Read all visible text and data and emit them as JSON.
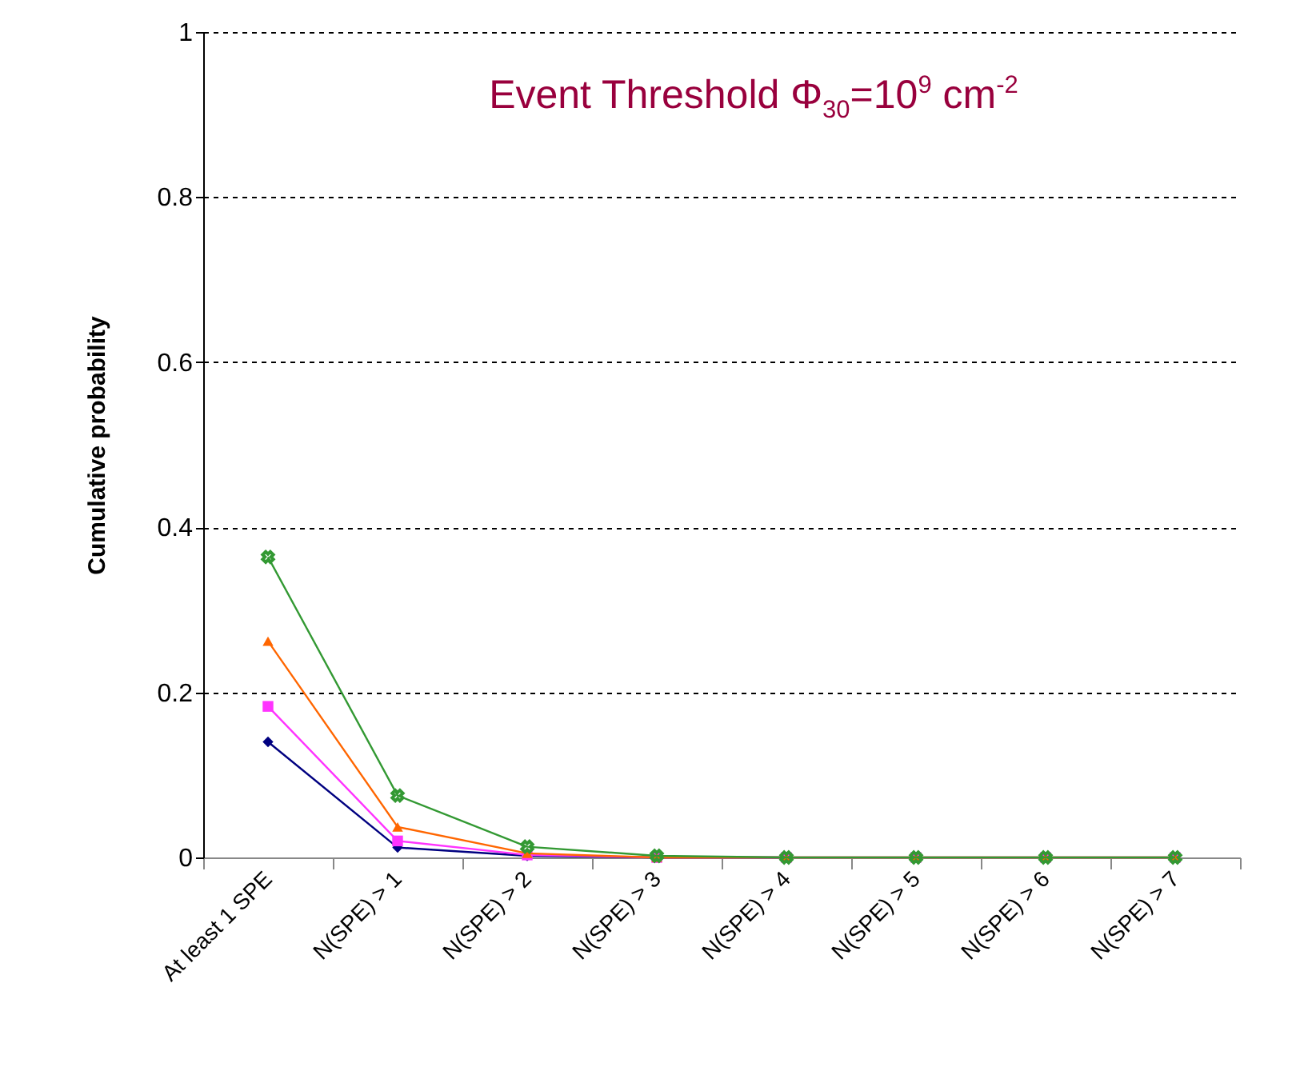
{
  "chart_data": {
    "type": "line",
    "title": "Event Threshold Φ$_{30}$=10$^{9}$ cm$^{-2}$",
    "ylabel": "Cumulative probability",
    "categories": [
      "At least 1 SPE",
      "N(SPE) > 1",
      "N(SPE) > 2",
      "N(SPE) > 3",
      "N(SPE) > 4",
      "N(SPE) > 5",
      "N(SPE) > 6",
      "N(SPE) > 7"
    ],
    "series": [
      {
        "color": "#000080",
        "marker": "diamond",
        "values": [
          0.14,
          0.012,
          0.002,
          0,
          0,
          null,
          null,
          null
        ]
      },
      {
        "color": "#ff33ff",
        "marker": "square",
        "values": [
          0.183,
          0.02,
          0.003,
          0,
          0,
          0,
          0,
          0
        ]
      },
      {
        "color": "#ff6600",
        "marker": "triangle",
        "values": [
          0.262,
          0.037,
          0.005,
          0,
          0,
          0,
          0,
          0
        ]
      },
      {
        "color": "#339933",
        "marker": "cross",
        "values": [
          0.364,
          0.075,
          0.013,
          0.002,
          0,
          0,
          0,
          0
        ]
      }
    ],
    "ylim": [
      0,
      1
    ],
    "yticks": [
      0,
      0.2,
      0.4,
      0.6,
      0.8,
      1
    ],
    "grid": "y"
  }
}
